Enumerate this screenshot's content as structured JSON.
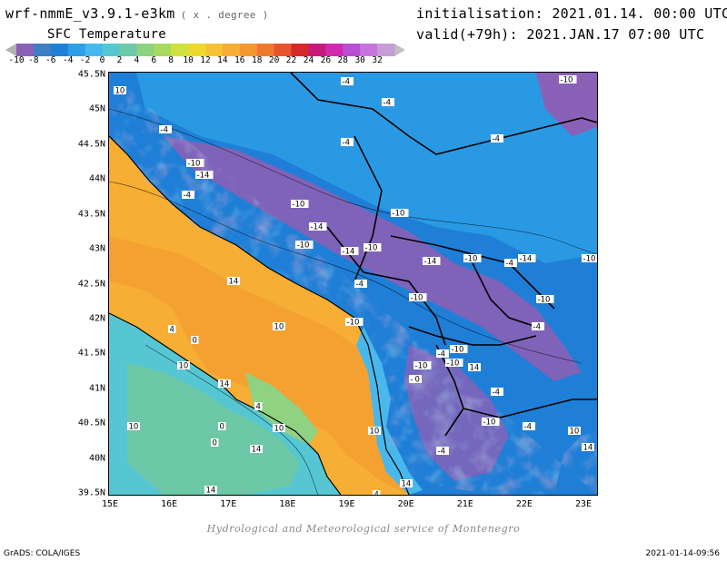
{
  "header": {
    "model": "wrf-nmmE_v3.9.1-e3km",
    "model_units": "( x . degree )",
    "field": "SFC Temperature",
    "init_label": "initialisation:",
    "init_value": "2021.01.14. 00:00 UTC",
    "valid_label": "valid(+79h):",
    "valid_value": "2021.JAN.17 07:00 UTC"
  },
  "colorbar": {
    "labels": [
      "-10",
      "-8",
      "-6",
      "-4",
      "-2",
      "0",
      "2",
      "4",
      "6",
      "8",
      "10",
      "12",
      "14",
      "16",
      "18",
      "20",
      "22",
      "24",
      "26",
      "28",
      "30",
      "32"
    ],
    "colors": [
      "#8a61b6",
      "#3e7ec3",
      "#1f7fd7",
      "#2d9de6",
      "#48b8ec",
      "#56c7d2",
      "#6cc8a6",
      "#8ed282",
      "#a9d95f",
      "#d0e040",
      "#ecd92c",
      "#f5c237",
      "#f6ae34",
      "#f49832",
      "#ef7831",
      "#e75430",
      "#d62a2a",
      "#c81a7a",
      "#d12aae",
      "#b64fd2",
      "#c574db",
      "#c69cd6"
    ]
  },
  "map": {
    "latitudes": [
      "45.5N",
      "45N",
      "44.5N",
      "44N",
      "43.5N",
      "43N",
      "42.5N",
      "42N",
      "41.5N",
      "41N",
      "40.5N",
      "40N",
      "39.5N"
    ],
    "longitudes": [
      "15E",
      "16E",
      "17E",
      "18E",
      "19E",
      "20E",
      "21E",
      "22E",
      "23E"
    ],
    "contour_labels": [
      "-4",
      "-4",
      "-10",
      "-4",
      "-4",
      "-10",
      "-14",
      "-4",
      "-10",
      "-4",
      "-14",
      "-10",
      "-10",
      "-14",
      "-10",
      "-14",
      "-10",
      "-14",
      "-10",
      "-4",
      "-10",
      "-4",
      "-10",
      "-4",
      "-10",
      "-10",
      "-10",
      "-4",
      "-10",
      "-4",
      "-10",
      "-4",
      "4",
      "14",
      "10",
      "0",
      "14",
      "10",
      "4",
      "0",
      "14",
      "10",
      "14",
      "0",
      "10",
      "4",
      "14",
      "10",
      "10",
      "0",
      "14",
      "-4",
      "-4",
      "10",
      "14"
    ]
  },
  "footer": {
    "credit": "Hydrological and Meteorological service of Montenegro",
    "software": "GrADS: COLA/IGES",
    "timestamp": "2021-01-14-09:56"
  }
}
